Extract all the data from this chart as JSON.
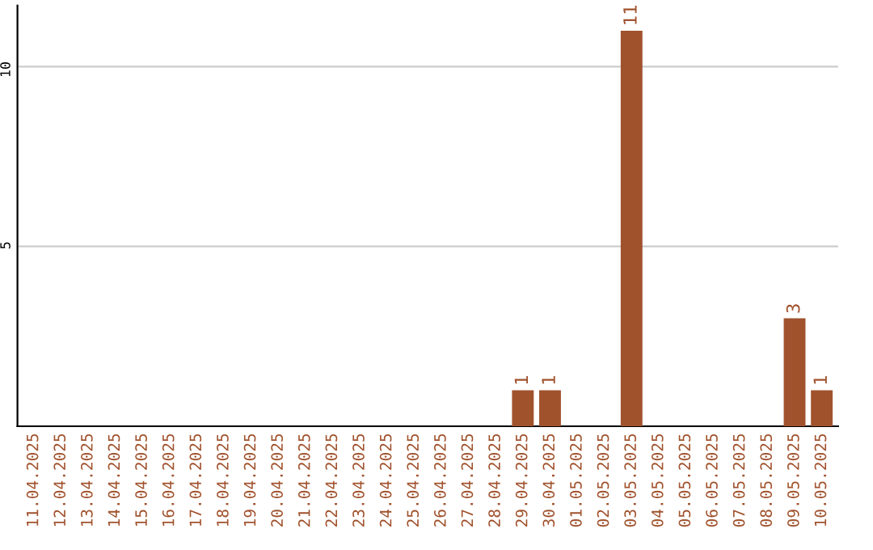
{
  "chart_data": {
    "type": "bar",
    "categories": [
      "11.04.2025",
      "12.04.2025",
      "13.04.2025",
      "14.04.2025",
      "15.04.2025",
      "16.04.2025",
      "17.04.2025",
      "18.04.2025",
      "19.04.2025",
      "20.04.2025",
      "21.04.2025",
      "22.04.2025",
      "23.04.2025",
      "24.04.2025",
      "25.04.2025",
      "26.04.2025",
      "27.04.2025",
      "28.04.2025",
      "29.04.2025",
      "30.04.2025",
      "01.05.2025",
      "02.05.2025",
      "03.05.2025",
      "04.05.2025",
      "05.05.2025",
      "06.05.2025",
      "07.05.2025",
      "08.05.2025",
      "09.05.2025",
      "10.05.2025"
    ],
    "values": [
      0,
      0,
      0,
      0,
      0,
      0,
      0,
      0,
      0,
      0,
      0,
      0,
      0,
      0,
      0,
      0,
      0,
      0,
      1,
      1,
      0,
      0,
      11,
      0,
      0,
      0,
      0,
      0,
      3,
      1
    ],
    "value_labels": [
      null,
      null,
      null,
      null,
      null,
      null,
      null,
      null,
      null,
      null,
      null,
      null,
      null,
      null,
      null,
      null,
      null,
      null,
      "1",
      "1",
      null,
      null,
      "11",
      null,
      null,
      null,
      null,
      null,
      "3",
      "1"
    ],
    "color": "#a0522d",
    "ylim": [
      0,
      11.7
    ],
    "yticks": [
      5,
      10
    ],
    "grid": "y"
  }
}
